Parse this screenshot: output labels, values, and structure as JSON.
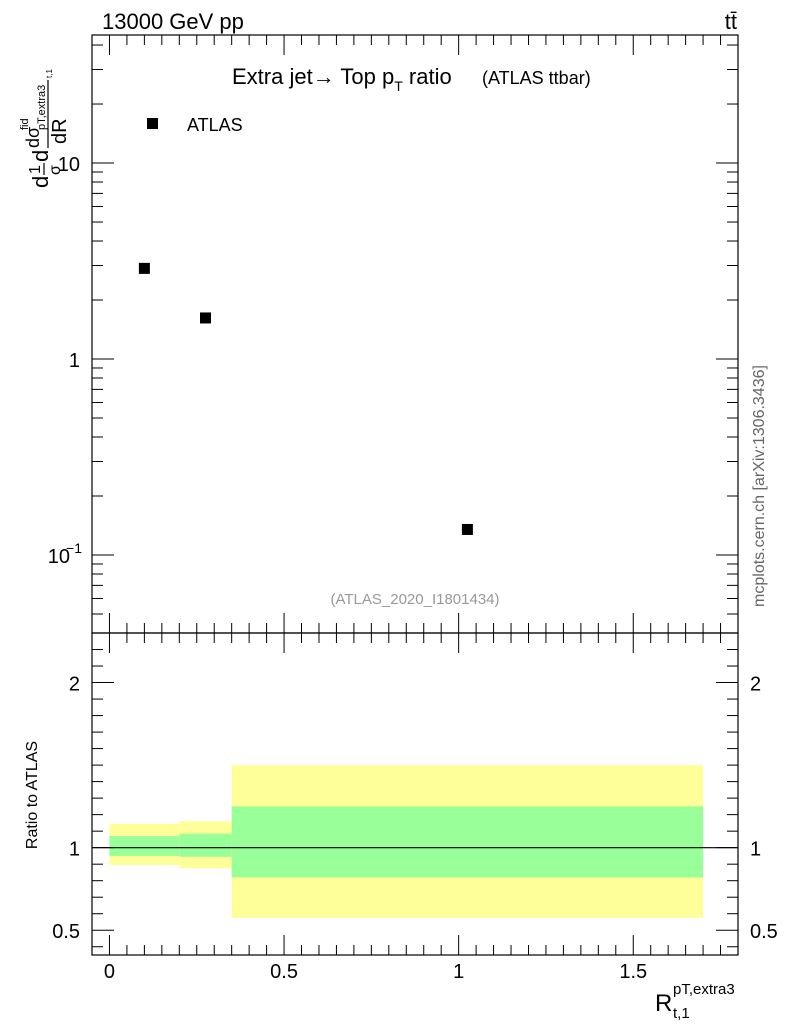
{
  "header": {
    "energy_label": "13000 GeV pp",
    "process_label": "tt̄",
    "title_main": "Extra jet→ Top p",
    "title_sub": "T",
    "title_ratio": " ratio",
    "title_small": "(ATLAS ttbar)",
    "analysis_id": "(ATLAS_2020_I1801434)",
    "side_credit": "mcplots.cern.ch [arXiv:1306.3436]"
  },
  "chart_data": [
    {
      "type": "scatter",
      "scale": "log",
      "ylabel_parts": {
        "d1": "d",
        "one": "1",
        "sigma": "σ",
        "d2": "d",
        "dsigma": "dσ",
        "fid": "fid",
        "sub": "pT,extra3",
        "sub2": "t,1",
        "dR": "dR"
      },
      "ylim": [
        0.04,
        45
      ],
      "xlim": [
        -0.05,
        1.8
      ],
      "yticks": [
        {
          "value": 0.1,
          "base": "10",
          "exp": "−1"
        },
        {
          "value": 1,
          "label": "1"
        },
        {
          "value": 10,
          "label": "10"
        }
      ],
      "legend": {
        "position": "top-left",
        "label": "ATLAS"
      },
      "series": [
        {
          "name": "ATLAS",
          "color": "#000000",
          "x": [
            0.1,
            0.275,
            1.025
          ],
          "y": [
            2.9,
            1.62,
            0.135
          ]
        }
      ]
    },
    {
      "type": "area",
      "ylabel": "Ratio to ATLAS",
      "xlabel_main": "R",
      "xlabel_sup": "pT,extra3",
      "xlabel_sub": "t,1",
      "ylim": [
        0.35,
        2.3
      ],
      "xlim": [
        -0.05,
        1.8
      ],
      "xticks": [
        {
          "value": 0,
          "label": "0"
        },
        {
          "value": 0.5,
          "label": "0.5"
        },
        {
          "value": 1,
          "label": "1"
        },
        {
          "value": 1.5,
          "label": "1.5"
        }
      ],
      "yticks": [
        {
          "value": 0.5,
          "label": "0.5"
        },
        {
          "value": 1,
          "label": "1"
        },
        {
          "value": 2,
          "label": "2"
        }
      ],
      "reference_line": 1,
      "bands": [
        {
          "x0": 0.0,
          "x1": 0.2,
          "outer": [
            0.895,
            1.145
          ],
          "inner": [
            0.95,
            1.07
          ],
          "outer_color": "#ffff99",
          "inner_color": "#99ff99"
        },
        {
          "x0": 0.2,
          "x1": 0.35,
          "outer": [
            0.875,
            1.16
          ],
          "inner": [
            0.945,
            1.085
          ],
          "outer_color": "#ffff99",
          "inner_color": "#99ff99"
        },
        {
          "x0": 0.35,
          "x1": 1.7,
          "outer": [
            0.575,
            1.5
          ],
          "inner": [
            0.82,
            1.25
          ],
          "outer_color": "#ffff99",
          "inner_color": "#99ff99"
        }
      ]
    }
  ]
}
